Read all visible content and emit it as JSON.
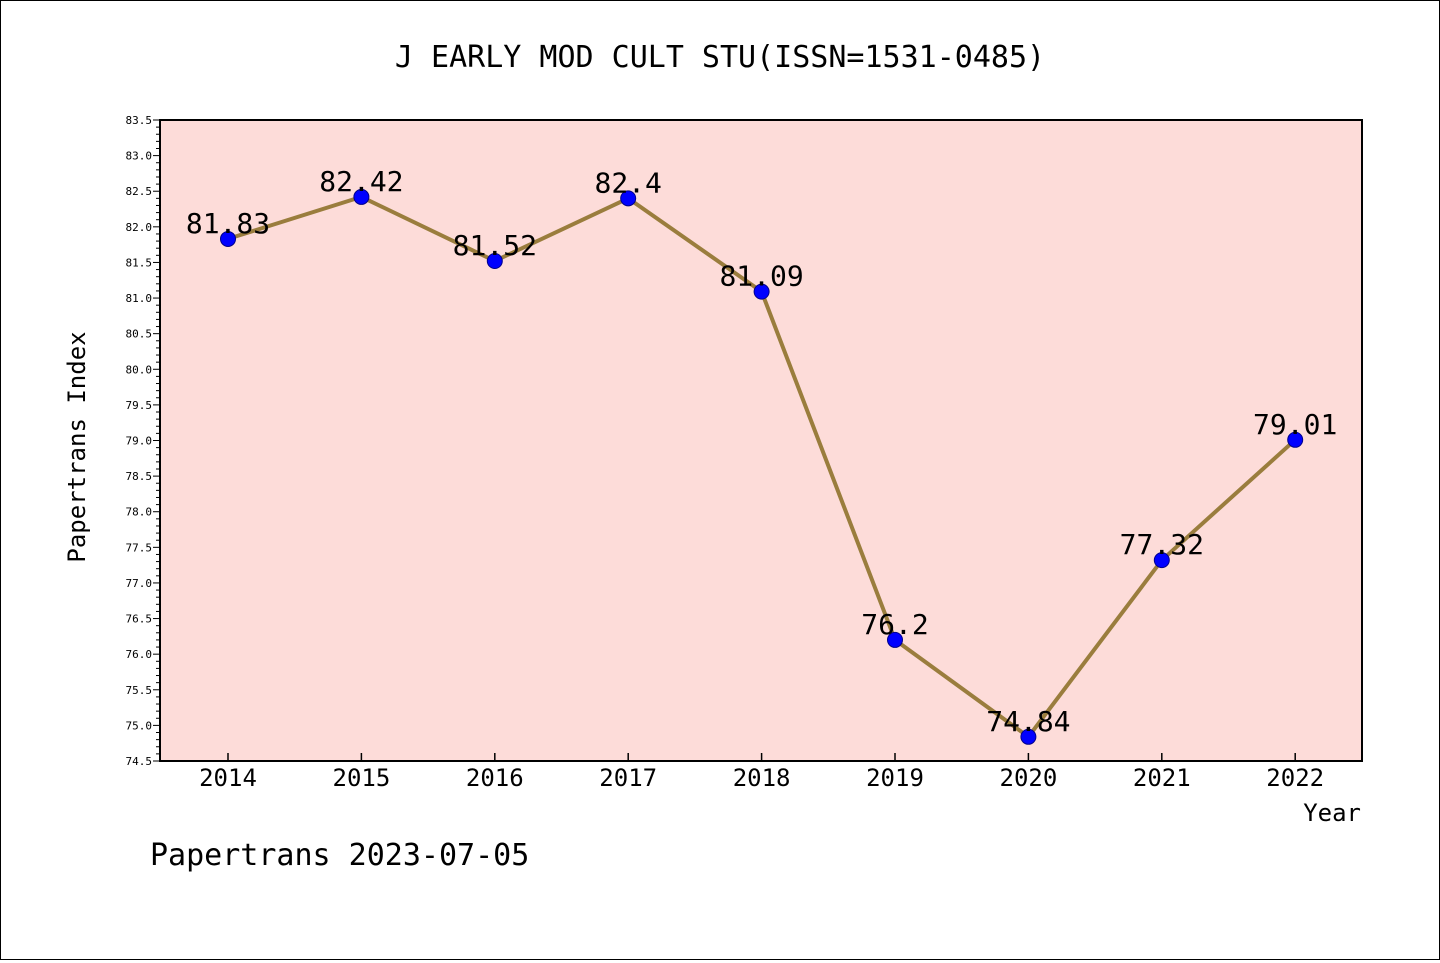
{
  "chart_data": {
    "type": "line",
    "title": "J EARLY MOD CULT STU(ISSN=1531-0485)",
    "xlabel": "Year",
    "ylabel": "Papertrans Index",
    "categories": [
      "2014",
      "2015",
      "2016",
      "2017",
      "2018",
      "2019",
      "2020",
      "2021",
      "2022"
    ],
    "values": [
      81.83,
      82.42,
      81.52,
      82.4,
      81.09,
      76.2,
      74.84,
      77.32,
      79.01
    ],
    "data_labels": [
      "81.83",
      "82.42",
      "81.52",
      "82.4",
      "81.09",
      "76.2",
      "74.84",
      "77.32",
      "79.01"
    ],
    "ylim": [
      74.5,
      83.5
    ],
    "yticks": [
      "74.5",
      "75.0",
      "75.5",
      "76.0",
      "76.5",
      "77.0",
      "77.5",
      "78.0",
      "78.5",
      "79.0",
      "79.5",
      "80.0",
      "80.5",
      "81.0",
      "81.5",
      "82.0",
      "82.5",
      "83.0",
      "83.5"
    ],
    "grid": false,
    "colors": {
      "plot_background": "#fddcd9",
      "line": "#9a7d3d",
      "marker": "#0000ff"
    }
  },
  "footer": "Papertrans 2023-07-05"
}
